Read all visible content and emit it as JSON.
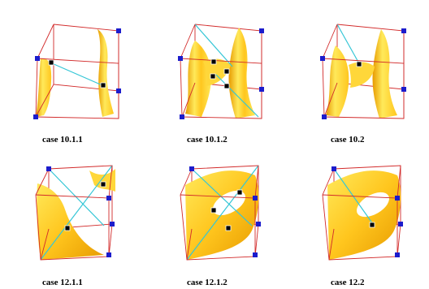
{
  "figure": {
    "cases": [
      {
        "label": "case 10.1.1"
      },
      {
        "label": "case 10.1.2"
      },
      {
        "label": "case 10.2"
      },
      {
        "label": "case 12.1.1"
      },
      {
        "label": "case 12.1.2"
      },
      {
        "label": "case 12.2"
      }
    ],
    "colors": {
      "cube_edge": "#d22a2a",
      "diagonal": "#35c6d6",
      "surface_light": "#ffe95a",
      "surface_mid": "#ffc61e",
      "surface_dark": "#e79a00",
      "vertex_marker": "#1c1ccc",
      "saddle_marker": "#000000"
    }
  }
}
